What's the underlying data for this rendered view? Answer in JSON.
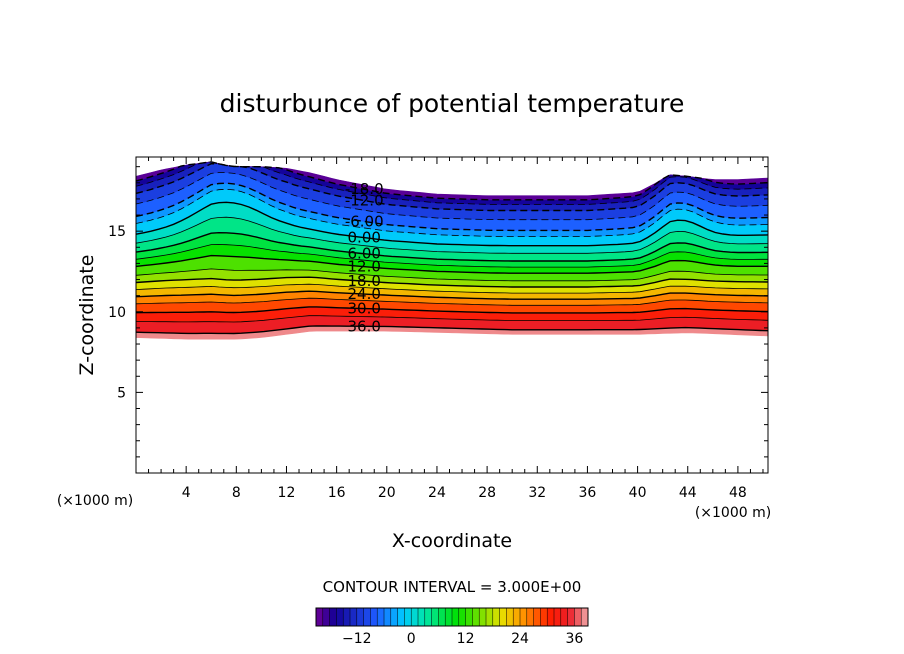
{
  "chart_data": {
    "type": "contour",
    "title": "disturbunce of potential temperature",
    "xlabel": "X-coordinate",
    "ylabel": "Z-coordinate",
    "x_unit": "(×1000 m)",
    "z_unit": "(×1000 m)",
    "xlim": [
      0,
      50.4
    ],
    "ylim": [
      0,
      19.6
    ],
    "x_ticks": [
      4,
      8,
      12,
      16,
      20,
      24,
      28,
      32,
      36,
      40,
      44,
      48
    ],
    "y_ticks": [
      5,
      10,
      15
    ],
    "contour_interval_text": "CONTOUR INTERVAL = 3.000E+00",
    "contour_interval": 3,
    "value_range": [
      -21,
      39
    ],
    "colorbar_ticks": [
      -12,
      0,
      12,
      24,
      36
    ],
    "contour_labels": [
      "-18.0",
      "-12.0",
      "-6.00",
      "0.00",
      "6.00",
      "12.0",
      "18.0",
      "24.0",
      "30.0",
      "36.0"
    ],
    "contour_label_x": 18.2,
    "top_boundary": {
      "x": [
        0,
        2,
        4,
        6,
        7,
        8,
        10,
        12,
        14,
        16,
        18,
        20,
        24,
        28,
        32,
        36,
        40,
        41.5,
        42.5,
        44,
        46,
        48,
        50.4
      ],
      "z": [
        18.4,
        18.8,
        19.1,
        19.3,
        19.1,
        19.0,
        19.0,
        18.9,
        18.6,
        18.2,
        17.9,
        17.6,
        17.3,
        17.2,
        17.2,
        17.2,
        17.4,
        18.0,
        18.5,
        18.4,
        18.2,
        18.2,
        18.3
      ]
    },
    "bottom_boundary": {
      "x": [
        0,
        4,
        8,
        10,
        12,
        14,
        16,
        20,
        30,
        40,
        44,
        50.4
      ],
      "z": [
        8.4,
        8.3,
        8.3,
        8.4,
        8.6,
        8.8,
        8.8,
        8.8,
        8.6,
        8.6,
        8.7,
        8.5
      ]
    },
    "levels_at_x18": [
      {
        "value": -18,
        "z": 17.6
      },
      {
        "value": -15,
        "z": 17.3
      },
      {
        "value": -12,
        "z": 16.9
      },
      {
        "value": -9,
        "z": 16.3
      },
      {
        "value": -6,
        "z": 15.6
      },
      {
        "value": -3,
        "z": 15.2
      },
      {
        "value": 0,
        "z": 14.6
      },
      {
        "value": 3,
        "z": 14.1
      },
      {
        "value": 6,
        "z": 13.6
      },
      {
        "value": 9,
        "z": 13.2
      },
      {
        "value": 12,
        "z": 12.8
      },
      {
        "value": 15,
        "z": 12.3
      },
      {
        "value": 18,
        "z": 11.9
      },
      {
        "value": 21,
        "z": 11.5
      },
      {
        "value": 24,
        "z": 11.1
      },
      {
        "value": 27,
        "z": 10.7
      },
      {
        "value": 30,
        "z": 10.2
      },
      {
        "value": 33,
        "z": 9.7
      },
      {
        "value": 36,
        "z": 9.1
      }
    ],
    "hump": [
      {
        "x": 7.5,
        "amplitude": 1.9,
        "width": 3.5
      },
      {
        "x": 43.5,
        "amplitude": 0.9,
        "width": 2.2
      }
    ]
  }
}
